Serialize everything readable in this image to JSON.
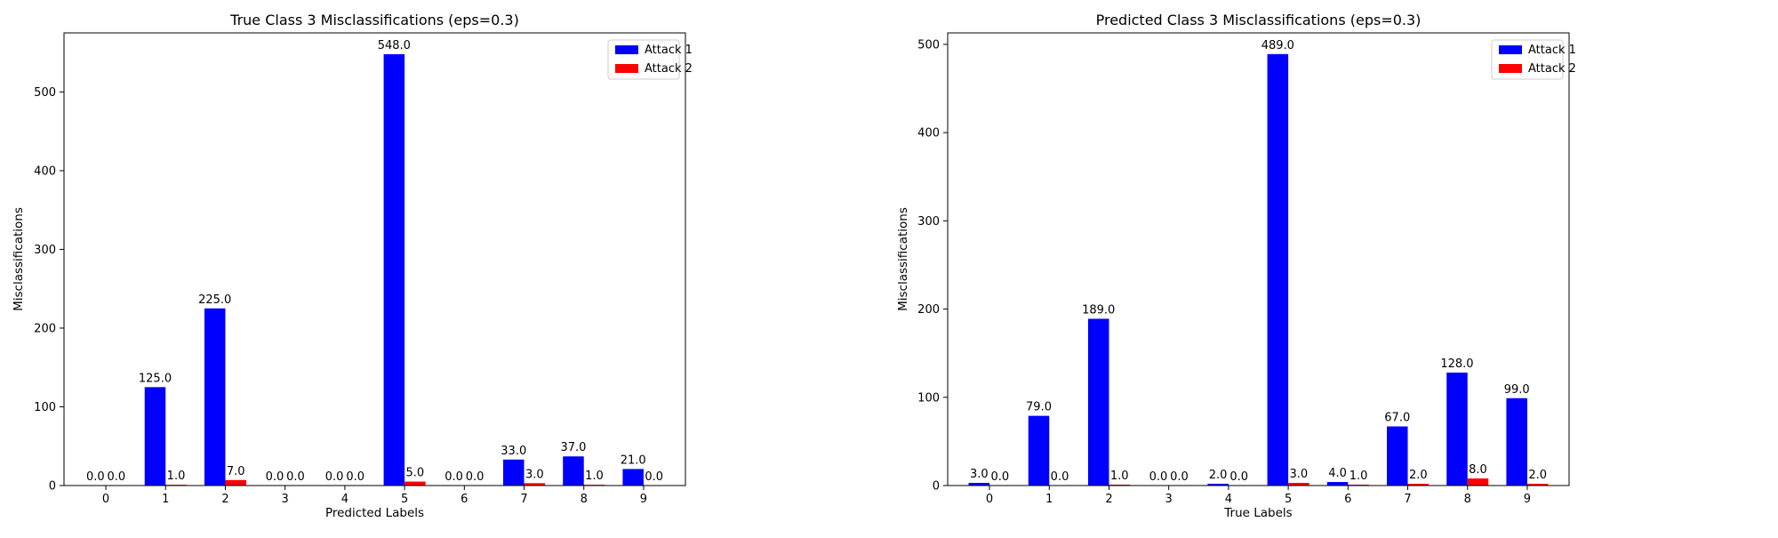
{
  "chart_data": [
    {
      "type": "bar",
      "title": "True Class 3 Misclassifications (eps=0.3)",
      "xlabel": "Predicted Labels",
      "ylabel": "Misclassifications",
      "categories": [
        "0",
        "1",
        "2",
        "3",
        "4",
        "5",
        "6",
        "7",
        "8",
        "9"
      ],
      "ylim": [
        0,
        575
      ],
      "yticks": [
        0,
        100,
        200,
        300,
        400,
        500
      ],
      "legend_position": "top-right",
      "grid": false,
      "series": [
        {
          "name": "Attack 1",
          "color": "#0000ff",
          "values": [
            0.0,
            125.0,
            225.0,
            0.0,
            0.0,
            548.0,
            0.0,
            33.0,
            37.0,
            21.0
          ]
        },
        {
          "name": "Attack 2",
          "color": "#ff0000",
          "values": [
            0.0,
            1.0,
            7.0,
            0.0,
            0.0,
            5.0,
            0.0,
            3.0,
            1.0,
            0.0
          ]
        }
      ]
    },
    {
      "type": "bar",
      "title": "Predicted Class 3 Misclassifications (eps=0.3)",
      "xlabel": "True Labels",
      "ylabel": "Misclassifications",
      "categories": [
        "0",
        "1",
        "2",
        "3",
        "4",
        "5",
        "6",
        "7",
        "8",
        "9"
      ],
      "ylim": [
        0,
        513
      ],
      "yticks": [
        0,
        100,
        200,
        300,
        400,
        500
      ],
      "legend_position": "top-right",
      "grid": false,
      "series": [
        {
          "name": "Attack 1",
          "color": "#0000ff",
          "values": [
            3.0,
            79.0,
            189.0,
            0.0,
            2.0,
            489.0,
            4.0,
            67.0,
            128.0,
            99.0
          ]
        },
        {
          "name": "Attack 2",
          "color": "#ff0000",
          "values": [
            0.0,
            0.0,
            1.0,
            0.0,
            0.0,
            3.0,
            1.0,
            2.0,
            8.0,
            2.0
          ]
        }
      ]
    }
  ]
}
